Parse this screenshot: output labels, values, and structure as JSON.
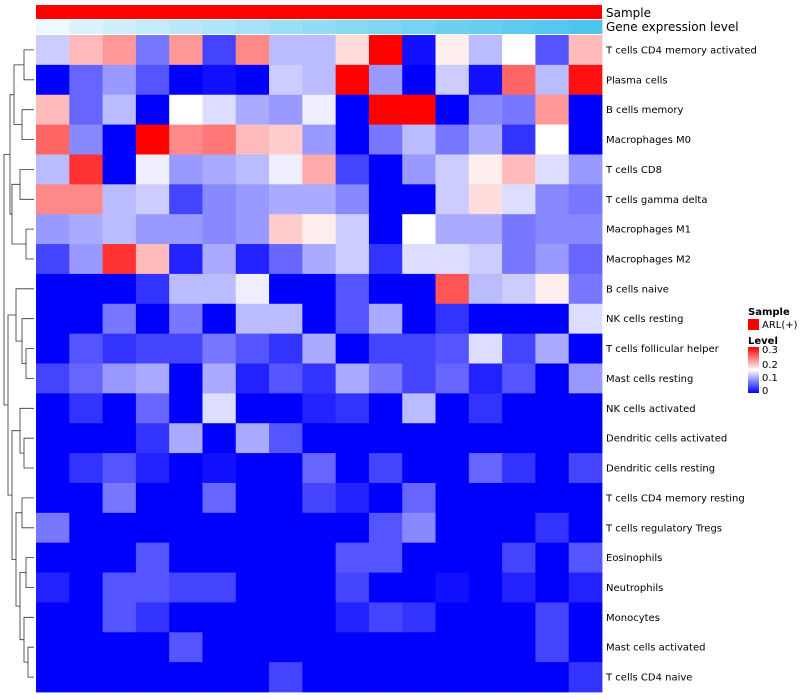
{
  "chart_data": {
    "type": "heatmap",
    "annotation_bars": [
      "Sample",
      "Gene expression level"
    ],
    "legends": {
      "sample": {
        "title": "Sample",
        "entries": [
          {
            "label": "ARL(+)",
            "color": "#ff0000"
          }
        ]
      },
      "level": {
        "title": "Level",
        "ticks": [
          "0.3",
          "0.2",
          "0.1",
          "0"
        ],
        "range": [
          0,
          0.3
        ]
      }
    },
    "colors": {
      "low": "#0000ff",
      "mid": "#ffffff",
      "high": "#ff0000",
      "expr_light": "#eef9ff",
      "expr_dark": "#4dc6ee"
    },
    "rows": [
      "T cells CD4 memory activated",
      "Plasma cells",
      "B cells memory",
      "Macrophages M0",
      "T cells CD8",
      "T cells gamma delta",
      "Macrophages M1",
      "Macrophages M2",
      "B cells naive",
      "NK cells resting",
      "T cells follicular helper",
      "Mast cells resting",
      "NK cells activated",
      "Dendritic cells activated",
      "Dendritic cells resting",
      "T cells CD4 memory resting",
      "T cells regulatory  Tregs",
      "Eosinophils",
      "Neutrophils",
      "Monocytes",
      "Mast cells activated",
      "T cells CD4 naive"
    ],
    "values": [
      [
        0.12,
        0.19,
        0.21,
        0.07,
        0.21,
        0.04,
        0.22,
        0.11,
        0.11,
        0.17,
        0.3,
        0.01,
        0.16,
        0.11,
        0.15,
        0.05,
        0.19
      ],
      [
        0.0,
        0.06,
        0.09,
        0.05,
        0.0,
        0.01,
        0.0,
        0.12,
        0.11,
        0.3,
        0.09,
        0.0,
        0.12,
        0.01,
        0.24,
        0.11,
        0.29
      ],
      [
        0.19,
        0.06,
        0.11,
        0.0,
        0.15,
        0.13,
        0.1,
        0.09,
        0.14,
        0.0,
        0.3,
        0.3,
        0.0,
        0.08,
        0.07,
        0.21,
        0.0
      ],
      [
        0.24,
        0.08,
        0.0,
        0.3,
        0.22,
        0.23,
        0.19,
        0.18,
        0.09,
        0.0,
        0.07,
        0.11,
        0.07,
        0.1,
        0.03,
        0.15,
        0.0
      ],
      [
        0.11,
        0.27,
        0.0,
        0.14,
        0.09,
        0.1,
        0.11,
        0.14,
        0.2,
        0.04,
        0.0,
        0.09,
        0.12,
        0.16,
        0.19,
        0.13,
        0.09
      ],
      [
        0.22,
        0.22,
        0.11,
        0.12,
        0.04,
        0.08,
        0.09,
        0.1,
        0.1,
        0.08,
        0.0,
        0.0,
        0.12,
        0.17,
        0.13,
        0.08,
        0.07
      ],
      [
        0.09,
        0.1,
        0.11,
        0.09,
        0.09,
        0.08,
        0.09,
        0.18,
        0.16,
        0.12,
        0.0,
        0.15,
        0.1,
        0.1,
        0.07,
        0.08,
        0.08
      ],
      [
        0.04,
        0.09,
        0.27,
        0.19,
        0.02,
        0.1,
        0.02,
        0.06,
        0.1,
        0.12,
        0.03,
        0.13,
        0.13,
        0.12,
        0.07,
        0.09,
        0.06
      ],
      [
        0.0,
        0.0,
        0.0,
        0.03,
        0.11,
        0.11,
        0.14,
        0.0,
        0.0,
        0.05,
        0.0,
        0.0,
        0.25,
        0.11,
        0.12,
        0.16,
        0.07
      ],
      [
        0.0,
        0.0,
        0.07,
        0.0,
        0.07,
        0.0,
        0.11,
        0.11,
        0.0,
        0.05,
        0.1,
        0.0,
        0.03,
        0.0,
        0.0,
        0.0,
        0.13
      ],
      [
        0.0,
        0.05,
        0.03,
        0.04,
        0.04,
        0.07,
        0.05,
        0.03,
        0.1,
        0.0,
        0.04,
        0.04,
        0.05,
        0.13,
        0.04,
        0.1,
        0.0
      ],
      [
        0.04,
        0.06,
        0.09,
        0.1,
        0.0,
        0.1,
        0.02,
        0.05,
        0.03,
        0.1,
        0.07,
        0.04,
        0.06,
        0.02,
        0.05,
        0.0,
        0.09
      ],
      [
        0.0,
        0.03,
        0.0,
        0.06,
        0.0,
        0.13,
        0.0,
        0.0,
        0.02,
        0.03,
        0.0,
        0.11,
        0.0,
        0.03,
        0.0,
        0.0,
        0.0
      ],
      [
        0.0,
        0.0,
        0.0,
        0.03,
        0.1,
        0.0,
        0.1,
        0.05,
        0.0,
        0.0,
        0.0,
        0.0,
        0.0,
        0.0,
        0.0,
        0.0,
        0.0
      ],
      [
        0.0,
        0.03,
        0.05,
        0.02,
        0.0,
        0.01,
        0.0,
        0.0,
        0.06,
        0.0,
        0.04,
        0.0,
        0.0,
        0.06,
        0.03,
        0.0,
        0.04
      ],
      [
        0.0,
        0.0,
        0.07,
        0.0,
        0.0,
        0.06,
        0.0,
        0.0,
        0.04,
        0.02,
        0.0,
        0.06,
        0.0,
        0.0,
        0.0,
        0.0,
        0.0
      ],
      [
        0.07,
        0.0,
        0.0,
        0.0,
        0.0,
        0.0,
        0.0,
        0.0,
        0.0,
        0.0,
        0.05,
        0.08,
        0.0,
        0.0,
        0.0,
        0.03,
        0.0
      ],
      [
        0.0,
        0.0,
        0.0,
        0.05,
        0.0,
        0.0,
        0.0,
        0.0,
        0.0,
        0.05,
        0.05,
        0.0,
        0.0,
        0.0,
        0.04,
        0.0,
        0.05
      ],
      [
        0.02,
        0.0,
        0.05,
        0.05,
        0.04,
        0.04,
        0.0,
        0.0,
        0.0,
        0.04,
        0.0,
        0.0,
        0.01,
        0.0,
        0.02,
        0.0,
        0.02
      ],
      [
        0.0,
        0.0,
        0.05,
        0.03,
        0.0,
        0.0,
        0.0,
        0.0,
        0.0,
        0.02,
        0.04,
        0.03,
        0.0,
        0.0,
        0.0,
        0.04,
        0.0
      ],
      [
        0.0,
        0.0,
        0.0,
        0.0,
        0.05,
        0.0,
        0.0,
        0.0,
        0.0,
        0.0,
        0.0,
        0.0,
        0.0,
        0.0,
        0.0,
        0.04,
        0.0
      ],
      [
        0.0,
        0.0,
        0.0,
        0.0,
        0.0,
        0.0,
        0.0,
        0.04,
        0.0,
        0.0,
        0.0,
        0.0,
        0.0,
        0.0,
        0.0,
        0.0,
        0.03
      ]
    ]
  }
}
